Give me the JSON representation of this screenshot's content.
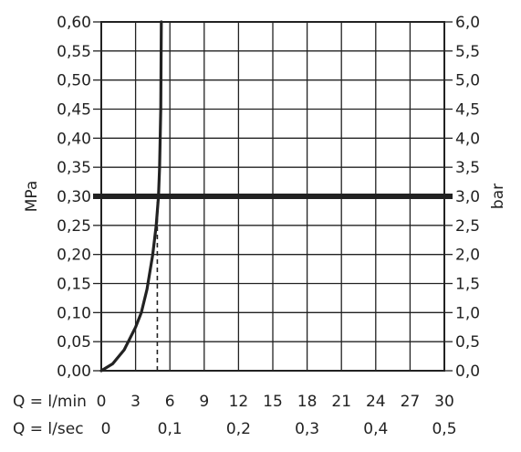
{
  "chart_data": {
    "type": "line",
    "y_left": {
      "label": "MPa",
      "min": 0,
      "max": 0.6,
      "step": 0.05,
      "ticks": [
        "0,00",
        "0,05",
        "0,10",
        "0,15",
        "0,20",
        "0,25",
        "0,30",
        "0,35",
        "0,40",
        "0,45",
        "0,50",
        "0,55",
        "0,60"
      ]
    },
    "y_right": {
      "label": "bar",
      "min": 0,
      "max": 6,
      "step": 0.5,
      "ticks": [
        "0,0",
        "0,5",
        "1,0",
        "1,5",
        "2,0",
        "2,5",
        "3,0",
        "3,5",
        "4,0",
        "4,5",
        "5,0",
        "5,5",
        "6,0"
      ]
    },
    "x_lmin": {
      "label": "Q = l/min",
      "min": 0,
      "max": 30,
      "ticks": [
        {
          "value": 0,
          "text": "0"
        },
        {
          "value": 3,
          "text": "3"
        },
        {
          "value": 6,
          "text": "6"
        },
        {
          "value": 9,
          "text": "9"
        },
        {
          "value": 12,
          "text": "12"
        },
        {
          "value": 15,
          "text": "15"
        },
        {
          "value": 18,
          "text": "18"
        },
        {
          "value": 21,
          "text": "21"
        },
        {
          "value": 24,
          "text": "24"
        },
        {
          "value": 27,
          "text": "27"
        },
        {
          "value": 30,
          "text": "30"
        }
      ]
    },
    "x_lsec": {
      "label": "Q = l/sec",
      "ticks": [
        {
          "value": 0,
          "text": "0"
        },
        {
          "value": 0.1,
          "text": "0,1"
        },
        {
          "value": 0.2,
          "text": "0,2"
        },
        {
          "value": 0.3,
          "text": "0,3"
        },
        {
          "value": 0.4,
          "text": "0,4"
        },
        {
          "value": 0.5,
          "text": "0,5"
        }
      ]
    },
    "grid": true,
    "reference_line": {
      "y": 0.3
    },
    "series": [
      {
        "points": [
          {
            "x": 0,
            "y": 0
          },
          {
            "x": 1,
            "y": 0.012
          },
          {
            "x": 2,
            "y": 0.036
          },
          {
            "x": 3,
            "y": 0.075
          },
          {
            "x": 3.5,
            "y": 0.1
          },
          {
            "x": 4,
            "y": 0.14
          },
          {
            "x": 4.5,
            "y": 0.2
          },
          {
            "x": 4.8,
            "y": 0.25
          },
          {
            "x": 5,
            "y": 0.3
          },
          {
            "x": 5.1,
            "y": 0.35
          },
          {
            "x": 5.2,
            "y": 0.45
          },
          {
            "x": 5.25,
            "y": 0.6
          }
        ]
      }
    ],
    "drop_line": {
      "x": 4.9,
      "y_from": 0,
      "y_to": 0.3
    }
  }
}
